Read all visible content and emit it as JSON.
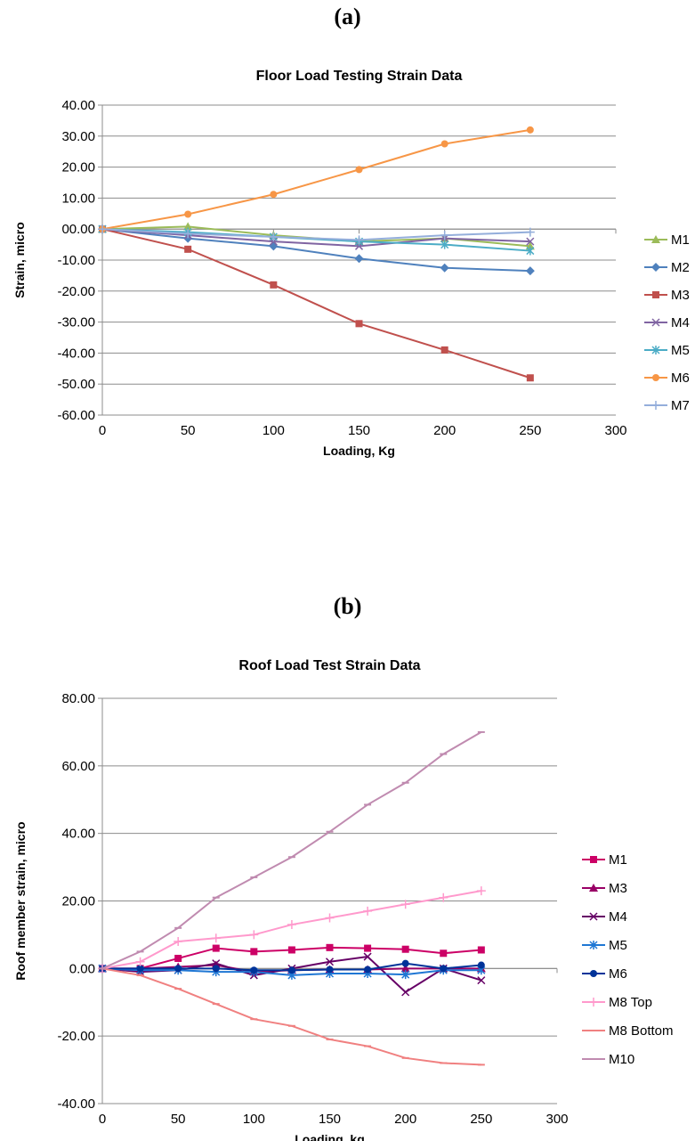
{
  "panel_a": {
    "label": "(a)"
  },
  "panel_b": {
    "label": "(b)"
  },
  "chart_data": [
    {
      "type": "line",
      "title": "Floor Load Testing Strain Data",
      "xlabel": "Loading, Kg",
      "ylabel": "Strain, micro",
      "xlim": [
        0,
        300
      ],
      "ylim": [
        -60,
        40
      ],
      "x_ticks": [
        "0",
        "50",
        "100",
        "150",
        "200",
        "250",
        "300"
      ],
      "y_ticks": [
        "40.00",
        "30.00",
        "20.00",
        "10.00",
        "00.00",
        "-10.00",
        "-20.00",
        "-30.00",
        "-40.00",
        "-50.00",
        "-60.00"
      ],
      "grid": "horizontal",
      "legend_position": "right",
      "x": [
        0,
        50,
        100,
        150,
        200,
        250
      ],
      "series": [
        {
          "name": "M1",
          "color": "#9bbb59",
          "marker": "triangle",
          "values": [
            0,
            0.8,
            -2.0,
            -4.0,
            -3.0,
            -5.5
          ]
        },
        {
          "name": "M2",
          "color": "#4f81bd",
          "marker": "diamond",
          "values": [
            0,
            -3.0,
            -5.5,
            -9.5,
            -12.5,
            -13.5
          ]
        },
        {
          "name": "M3",
          "color": "#c0504d",
          "marker": "square",
          "values": [
            0,
            -6.5,
            -18.0,
            -30.5,
            -39.0,
            -48.0
          ]
        },
        {
          "name": "M4",
          "color": "#8064a2",
          "marker": "x",
          "values": [
            0,
            -2.0,
            -4.0,
            -5.5,
            -3.0,
            -4.0
          ]
        },
        {
          "name": "M5",
          "color": "#4bacc6",
          "marker": "star",
          "values": [
            0,
            -1.0,
            -2.5,
            -4.0,
            -5.0,
            -7.0
          ]
        },
        {
          "name": "M6",
          "color": "#f79646",
          "marker": "circle",
          "values": [
            0,
            4.8,
            11.2,
            19.2,
            27.5,
            32.0
          ]
        },
        {
          "name": "M7",
          "color": "#94aedb",
          "marker": "plus",
          "values": [
            0,
            -1.5,
            -2.5,
            -3.5,
            -2.0,
            -1.0
          ]
        }
      ]
    },
    {
      "type": "line",
      "title": "Roof Load Test Strain Data",
      "xlabel": "Loading, kg",
      "ylabel": "Roof member strain, micro",
      "xlim": [
        0,
        300
      ],
      "ylim": [
        -40,
        80
      ],
      "x_ticks": [
        "0",
        "50",
        "100",
        "150",
        "200",
        "250",
        "300"
      ],
      "y_ticks": [
        "80.00",
        "60.00",
        "40.00",
        "20.00",
        "0.00",
        "-20.00",
        "-40.00"
      ],
      "grid": "horizontal",
      "legend_position": "right",
      "x": [
        0,
        25,
        50,
        75,
        100,
        125,
        150,
        175,
        200,
        225,
        250
      ],
      "series": [
        {
          "name": "M1",
          "color": "#cc0066",
          "marker": "square",
          "values": [
            0,
            0,
            3.0,
            6.0,
            5.0,
            5.5,
            6.2,
            6.0,
            5.7,
            4.5,
            5.5
          ]
        },
        {
          "name": "M3",
          "color": "#990066",
          "marker": "triangle",
          "values": [
            0,
            0,
            0.5,
            1.0,
            -1.0,
            -0.5,
            -0.3,
            -0.3,
            0,
            0,
            0
          ]
        },
        {
          "name": "M4",
          "color": "#660066",
          "marker": "x",
          "values": [
            0,
            -1.0,
            -0.5,
            1.5,
            -2.0,
            0,
            2.0,
            3.5,
            -7.0,
            0,
            -3.5
          ]
        },
        {
          "name": "M5",
          "color": "#1f77d4",
          "marker": "star",
          "values": [
            0,
            -0.5,
            -0.5,
            -1.0,
            -1.0,
            -2.0,
            -1.5,
            -1.5,
            -1.8,
            -0.5,
            -0.5
          ]
        },
        {
          "name": "M6",
          "color": "#003399",
          "marker": "circle",
          "values": [
            0,
            0,
            0,
            0,
            -0.5,
            -0.5,
            -0.3,
            -0.3,
            1.5,
            0,
            1.0
          ]
        },
        {
          "name": "M8 Top",
          "color": "#ff99cc",
          "marker": "plus",
          "values": [
            0,
            2.0,
            8.0,
            9.0,
            10.0,
            13.0,
            15.0,
            17.0,
            19.0,
            21.0,
            23.0
          ]
        },
        {
          "name": "M8 Bottom",
          "color": "#f08080",
          "marker": "dash",
          "values": [
            0,
            -2.0,
            -6.0,
            -10.5,
            -15.0,
            -17.0,
            -21.0,
            -23.0,
            -26.5,
            -28.0,
            -28.5
          ]
        },
        {
          "name": "M10",
          "color": "#c08bb0",
          "marker": "dash",
          "values": [
            0,
            5.0,
            12.0,
            21.0,
            27.0,
            33.0,
            40.5,
            48.5,
            55.0,
            63.5,
            70.0
          ]
        }
      ]
    }
  ]
}
